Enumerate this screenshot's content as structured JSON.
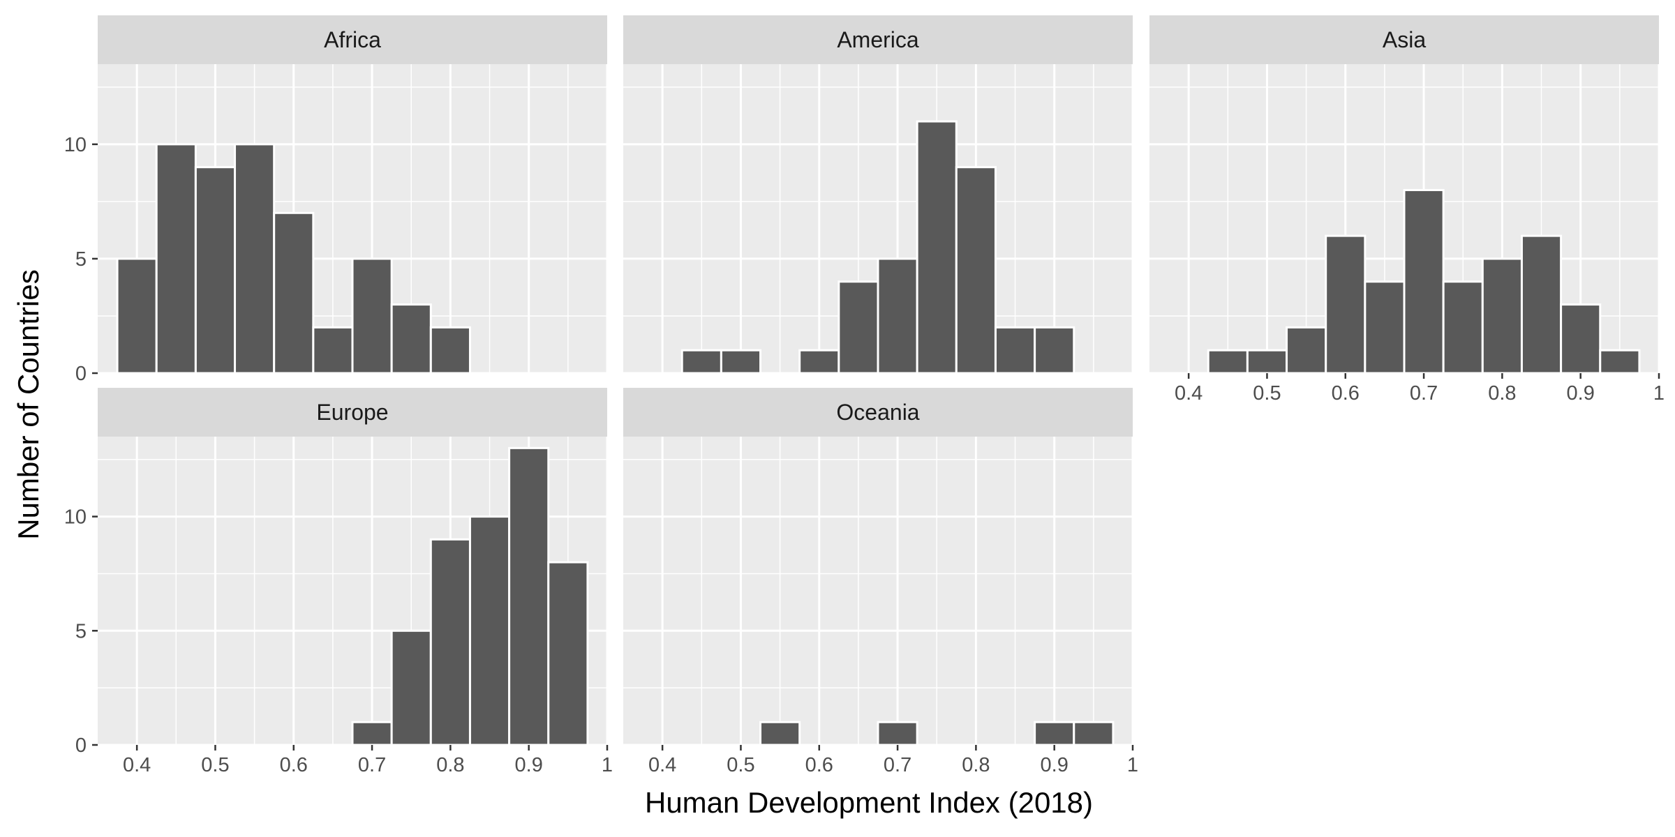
{
  "chart_data": {
    "type": "bar",
    "layout": "faceted-histogram",
    "xlabel": "Human Development Index (2018)",
    "ylabel": "Number of Countries",
    "xlim": [
      0.35,
      1.0
    ],
    "ylim": [
      0,
      13.5
    ],
    "x_ticks": [
      0.4,
      0.5,
      0.6,
      0.7,
      0.8,
      0.9,
      1.0
    ],
    "x_tick_labels": [
      "0.4",
      "0.5",
      "0.6",
      "0.7",
      "0.8",
      "0.9",
      "1"
    ],
    "y_ticks": [
      0,
      5,
      10
    ],
    "y_tick_labels": [
      "0",
      "5",
      "10"
    ],
    "bin_width": 0.05,
    "bin_centers": [
      0.4,
      0.45,
      0.5,
      0.55,
      0.6,
      0.65,
      0.7,
      0.75,
      0.8,
      0.85,
      0.9,
      0.95
    ],
    "grid": true,
    "panels": [
      {
        "name": "Africa",
        "values": [
          5,
          10,
          9,
          10,
          7,
          2,
          5,
          3,
          2,
          0,
          0,
          0
        ]
      },
      {
        "name": "America",
        "values": [
          0,
          1,
          1,
          0,
          1,
          4,
          5,
          11,
          9,
          2,
          2,
          0
        ]
      },
      {
        "name": "Asia",
        "values": [
          0,
          1,
          1,
          2,
          6,
          4,
          8,
          4,
          5,
          6,
          3,
          1
        ]
      },
      {
        "name": "Europe",
        "values": [
          0,
          0,
          0,
          0,
          0,
          0,
          1,
          5,
          9,
          10,
          13,
          8
        ]
      },
      {
        "name": "Oceania",
        "values": [
          0,
          0,
          0,
          1,
          0,
          0,
          1,
          0,
          0,
          0,
          1,
          1
        ]
      }
    ]
  }
}
